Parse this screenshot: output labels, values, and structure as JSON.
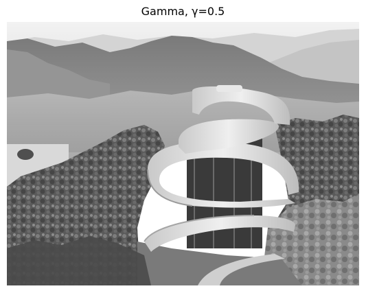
{
  "figure": {
    "title": "Gamma, γ=0.5"
  },
  "image": {
    "subject": "grayscale-photo",
    "colors": {
      "sky": "#ececec",
      "far_mountain": "#d6d6d6",
      "mid_mountain": "#8a8a8a",
      "near_hill": "#6e6e6e",
      "water": "#d9d9d9",
      "trees_dark": "#3d3d3d",
      "trees_light": "#7c7c7c",
      "ribbon": "#e2e2e2",
      "ribbon_shadow": "#9a9a9a",
      "path": "#cfcfcf"
    }
  }
}
